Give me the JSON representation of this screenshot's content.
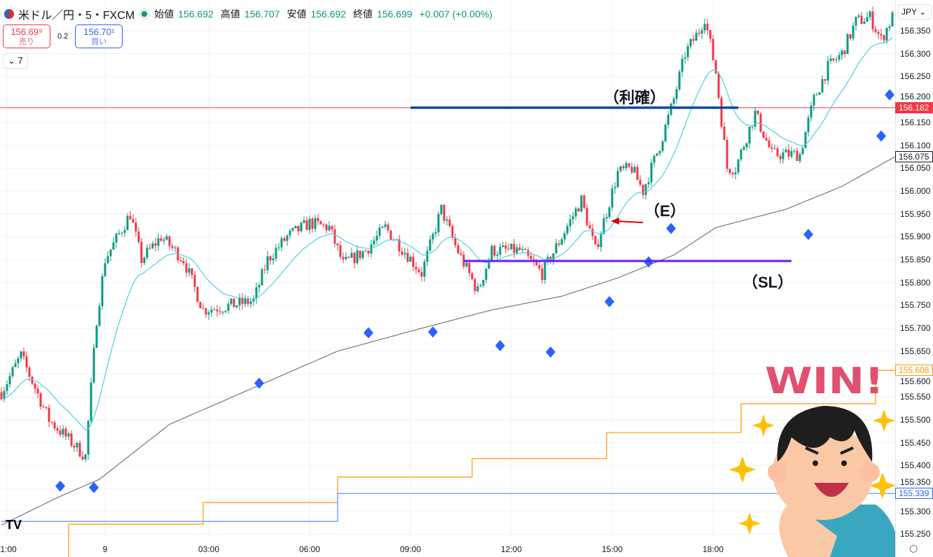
{
  "header": {
    "symbol": "米ドル／円・5・FXCM",
    "open_label": "始値",
    "open": "156.692",
    "high_label": "高値",
    "high": "156.707",
    "low_label": "安値",
    "low": "156.692",
    "close_label": "終値",
    "close": "156.699",
    "change": "+0.007 (+0.00%)"
  },
  "trade": {
    "sell_price": "156.69⁹",
    "sell_label": "売り",
    "spread": "0.2",
    "buy_price": "156.70¹",
    "buy_label": "買い"
  },
  "indicators_toggle": "7",
  "currency": "JPY",
  "annotations": {
    "take_profit": "（利確）",
    "entry": "（E）",
    "stop_loss": "（SL）"
  },
  "mascot_text": "WIN!",
  "chart_data": {
    "type": "candlestick",
    "symbol": "USD/JPY 5m FXCM",
    "ylim": [
      155.22,
      156.4
    ],
    "yticks": [
      "156.350",
      "156.300",
      "156.250",
      "156.200",
      "156.150",
      "156.100",
      "156.050",
      "156.000",
      "155.950",
      "155.900",
      "155.850",
      "155.800",
      "155.750",
      "155.700",
      "155.650",
      "155.600",
      "155.550",
      "155.500",
      "155.450",
      "155.400",
      "155.350",
      "155.300",
      "155.250"
    ],
    "xticks": [
      {
        "label": "1:00",
        "bar": 2
      },
      {
        "label": "9",
        "bar": 37
      },
      {
        "label": "03:00",
        "bar": 74
      },
      {
        "label": "06:00",
        "bar": 110
      },
      {
        "label": "09:00",
        "bar": 146
      },
      {
        "label": "12:00",
        "bar": 182
      },
      {
        "label": "15:00",
        "bar": 218
      },
      {
        "label": "18:00",
        "bar": 254
      }
    ],
    "close_path": [
      [
        0,
        155.56
      ],
      [
        7,
        155.64
      ],
      [
        17,
        155.5
      ],
      [
        30,
        155.42
      ],
      [
        34,
        155.72
      ],
      [
        37,
        155.85
      ],
      [
        46,
        155.95
      ],
      [
        50,
        155.85
      ],
      [
        57,
        155.9
      ],
      [
        65,
        155.85
      ],
      [
        72,
        155.74
      ],
      [
        82,
        155.75
      ],
      [
        90,
        155.76
      ],
      [
        95,
        155.85
      ],
      [
        102,
        155.9
      ],
      [
        110,
        155.93
      ],
      [
        117,
        155.92
      ],
      [
        122,
        155.84
      ],
      [
        130,
        155.87
      ],
      [
        137,
        155.92
      ],
      [
        145,
        155.86
      ],
      [
        150,
        155.82
      ],
      [
        157,
        155.96
      ],
      [
        162,
        155.88
      ],
      [
        170,
        155.78
      ],
      [
        175,
        155.87
      ],
      [
        185,
        155.87
      ],
      [
        193,
        155.82
      ],
      [
        200,
        155.9
      ],
      [
        207,
        155.98
      ],
      [
        212,
        155.87
      ],
      [
        220,
        156.04
      ],
      [
        225,
        156.05
      ],
      [
        229,
        156.0
      ],
      [
        235,
        156.1
      ],
      [
        240,
        156.2
      ],
      [
        244,
        156.3
      ],
      [
        249,
        156.35
      ],
      [
        251,
        156.38
      ],
      [
        255,
        156.26
      ],
      [
        259,
        156.05
      ],
      [
        262,
        156.05
      ],
      [
        269,
        156.17
      ],
      [
        275,
        156.08
      ],
      [
        285,
        156.08
      ],
      [
        290,
        156.2
      ],
      [
        295,
        156.27
      ],
      [
        300,
        156.3
      ],
      [
        305,
        156.37
      ],
      [
        310,
        156.38
      ],
      [
        314,
        156.33
      ],
      [
        318,
        156.38
      ]
    ],
    "long_ma_path": [
      [
        0,
        155.27
      ],
      [
        20,
        155.33
      ],
      [
        35,
        155.37
      ],
      [
        60,
        155.49
      ],
      [
        90,
        155.57
      ],
      [
        120,
        155.65
      ],
      [
        150,
        155.7
      ],
      [
        175,
        155.74
      ],
      [
        200,
        155.77
      ],
      [
        220,
        155.81
      ],
      [
        240,
        155.86
      ],
      [
        255,
        155.92
      ],
      [
        280,
        155.96
      ],
      [
        300,
        156.01
      ],
      [
        319,
        156.075
      ]
    ],
    "short_ema_period": 20,
    "markers_diamond": [
      [
        21,
        155.355
      ],
      [
        33,
        155.352
      ],
      [
        92,
        155.58
      ],
      [
        131,
        155.69
      ],
      [
        154,
        155.692
      ],
      [
        178,
        155.662
      ],
      [
        196,
        155.648
      ],
      [
        217,
        155.758
      ],
      [
        231,
        155.845
      ],
      [
        239,
        155.918
      ],
      [
        288,
        155.905
      ],
      [
        314,
        156.12
      ],
      [
        317,
        156.21
      ]
    ],
    "orange_steps": [
      [
        24,
        155.272
      ],
      [
        72,
        155.319
      ],
      [
        120,
        155.375
      ],
      [
        168,
        155.415
      ],
      [
        216,
        155.472
      ],
      [
        264,
        155.535
      ],
      [
        312,
        155.608
      ]
    ],
    "blue_steps": [
      [
        0,
        155.278
      ],
      [
        120,
        155.339
      ]
    ],
    "levels": [
      {
        "label": "156.182",
        "price": 156.182,
        "color": "#f23645"
      },
      {
        "label": "156.075",
        "price": 156.075,
        "color": "#131722"
      },
      {
        "label": "155.608",
        "price": 155.608,
        "color": "#ff9800"
      },
      {
        "label": "155.339",
        "price": 155.339,
        "color": "#2962ff"
      }
    ],
    "take_profit_line": {
      "price": 156.182,
      "from_bar": 146,
      "to_bar": 263
    },
    "stop_loss_line": {
      "price": 155.847,
      "from_bar": 165,
      "to_bar": 282
    }
  }
}
